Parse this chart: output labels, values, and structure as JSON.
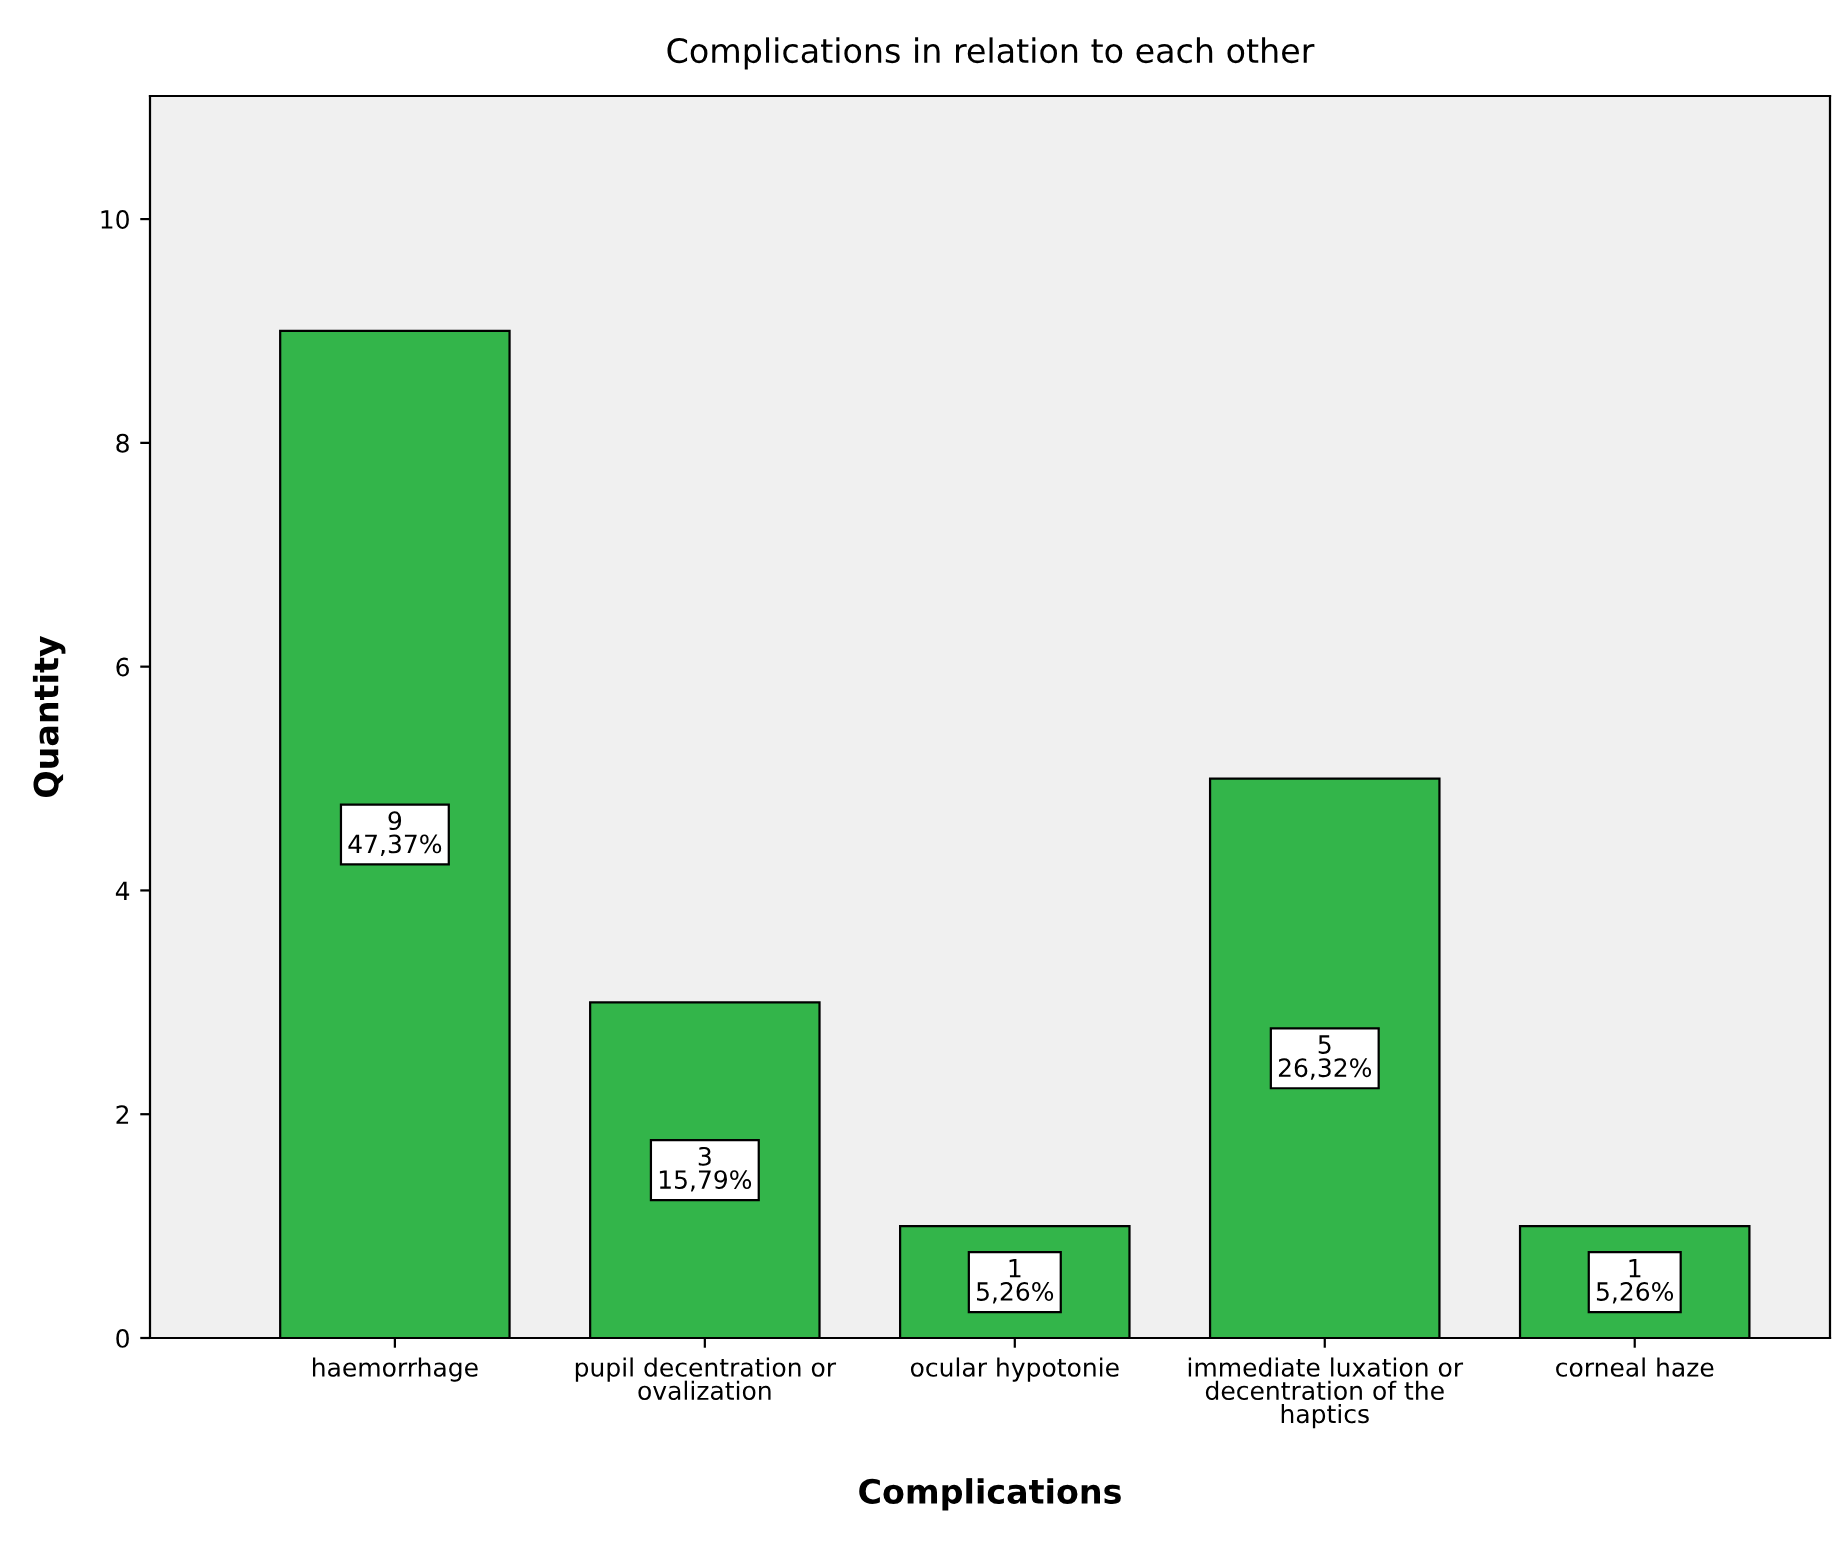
{
  "chart_data": {
    "type": "bar",
    "title": "Complications in relation to each other",
    "xlabel": "Complications",
    "ylabel": "Quantity",
    "categories": [
      "haemorrhage",
      "pupil decentration or\novalization",
      "ocular hypotonie",
      "immediate luxation or\ndecentration of the\nhaptics",
      "corneal haze"
    ],
    "values": [
      9,
      3,
      1,
      5,
      1
    ],
    "value_labels": [
      "9\n47,37%",
      "3\n15,79%",
      "1\n5,26%",
      "5\n26,32%",
      "1\n5,26%"
    ],
    "color": "#33b54a",
    "ylim": [
      0,
      11.1
    ],
    "yticks": [
      0,
      2,
      4,
      6,
      8,
      10
    ],
    "grid": false,
    "legend": false
  }
}
